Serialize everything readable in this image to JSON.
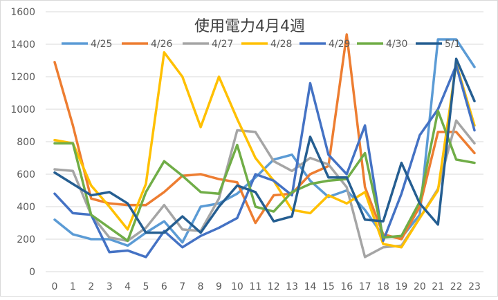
{
  "chart_data": {
    "type": "line",
    "title": "使用電力4月4週",
    "xlabel": "",
    "ylabel": "",
    "ylim": [
      0,
      1600
    ],
    "yticks": [
      0,
      200,
      400,
      600,
      800,
      1000,
      1200,
      1400,
      1600
    ],
    "grid": true,
    "legend": "top",
    "categories": [
      "0",
      "1",
      "2",
      "3",
      "4",
      "5",
      "6",
      "7",
      "8",
      "9",
      "10",
      "11",
      "12",
      "13",
      "14",
      "15",
      "16",
      "17",
      "18",
      "19",
      "20",
      "21",
      "22",
      "23"
    ],
    "series": [
      {
        "name": "4/25",
        "color": "#5B9BD5",
        "values": [
          320,
          230,
          200,
          200,
          160,
          240,
          310,
          180,
          400,
          420,
          480,
          580,
          690,
          720,
          560,
          460,
          500,
          380,
          220,
          210,
          350,
          1430,
          1430,
          1260
        ]
      },
      {
        "name": "4/26",
        "color": "#ED7D31",
        "values": [
          1290,
          900,
          450,
          420,
          410,
          410,
          490,
          590,
          600,
          570,
          550,
          300,
          470,
          480,
          600,
          650,
          1460,
          520,
          230,
          200,
          400,
          860,
          860,
          730
        ]
      },
      {
        "name": "4/27",
        "color": "#A5A5A5",
        "values": [
          630,
          620,
          350,
          210,
          190,
          270,
          410,
          260,
          250,
          450,
          870,
          860,
          680,
          620,
          700,
          660,
          520,
          90,
          150,
          160,
          330,
          510,
          930,
          790
        ]
      },
      {
        "name": "4/28",
        "color": "#FFC000",
        "values": [
          810,
          790,
          530,
          400,
          260,
          540,
          1350,
          1200,
          890,
          1200,
          940,
          700,
          560,
          380,
          360,
          470,
          420,
          490,
          170,
          150,
          330,
          500,
          1280,
          900
        ]
      },
      {
        "name": "4/29",
        "color": "#4472C4",
        "values": [
          480,
          360,
          350,
          120,
          130,
          90,
          250,
          150,
          220,
          270,
          330,
          600,
          560,
          470,
          1160,
          720,
          600,
          900,
          190,
          480,
          840,
          1000,
          1270,
          870
        ]
      },
      {
        "name": "4/30",
        "color": "#70AD47",
        "values": [
          790,
          790,
          350,
          270,
          190,
          490,
          680,
          590,
          490,
          480,
          780,
          400,
          370,
          490,
          540,
          560,
          570,
          730,
          210,
          220,
          430,
          990,
          690,
          670
        ]
      },
      {
        "name": "5/1",
        "color": "#255E91",
        "values": [
          610,
          540,
          470,
          490,
          420,
          240,
          240,
          340,
          240,
          400,
          530,
          490,
          310,
          340,
          830,
          580,
          580,
          320,
          310,
          670,
          420,
          290,
          1310,
          1050
        ]
      }
    ]
  }
}
